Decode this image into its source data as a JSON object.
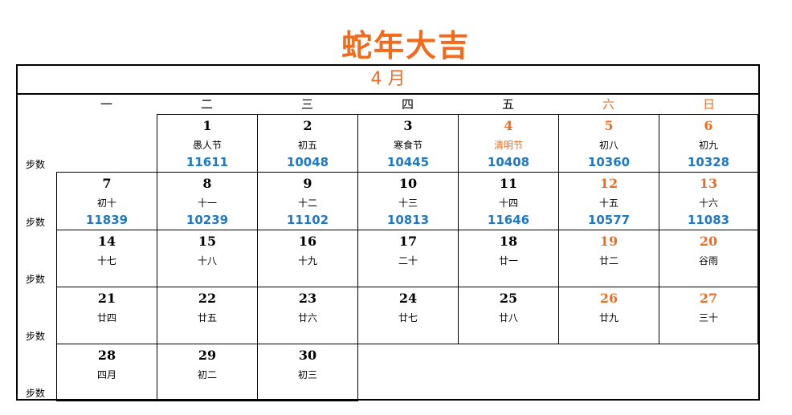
{
  "title": "蛇年大吉",
  "month": "4 月",
  "row_label": "步数",
  "weekdays": [
    {
      "label": "一",
      "weekend": false
    },
    {
      "label": "二",
      "weekend": false
    },
    {
      "label": "三",
      "weekend": false
    },
    {
      "label": "四",
      "weekend": false
    },
    {
      "label": "五",
      "weekend": false
    },
    {
      "label": "六",
      "weekend": true
    },
    {
      "label": "日",
      "weekend": true
    }
  ],
  "weeks": [
    [
      null,
      {
        "day": "1",
        "lunar": "愚人节",
        "steps": "11611",
        "weekend": false,
        "holiday": false
      },
      {
        "day": "2",
        "lunar": "初五",
        "steps": "10048",
        "weekend": false,
        "holiday": false
      },
      {
        "day": "3",
        "lunar": "寒食节",
        "steps": "10445",
        "weekend": false,
        "holiday": false
      },
      {
        "day": "4",
        "lunar": "清明节",
        "steps": "10408",
        "weekend": true,
        "holiday": true
      },
      {
        "day": "5",
        "lunar": "初八",
        "steps": "10360",
        "weekend": true,
        "holiday": false
      },
      {
        "day": "6",
        "lunar": "初九",
        "steps": "10328",
        "weekend": true,
        "holiday": false
      }
    ],
    [
      {
        "day": "7",
        "lunar": "初十",
        "steps": "11839",
        "weekend": false,
        "holiday": false
      },
      {
        "day": "8",
        "lunar": "十一",
        "steps": "10239",
        "weekend": false,
        "holiday": false
      },
      {
        "day": "9",
        "lunar": "十二",
        "steps": "11102",
        "weekend": false,
        "holiday": false
      },
      {
        "day": "10",
        "lunar": "十三",
        "steps": "10813",
        "weekend": false,
        "holiday": false
      },
      {
        "day": "11",
        "lunar": "十四",
        "steps": "11646",
        "weekend": false,
        "holiday": false
      },
      {
        "day": "12",
        "lunar": "十五",
        "steps": "10577",
        "weekend": true,
        "holiday": false
      },
      {
        "day": "13",
        "lunar": "十六",
        "steps": "11083",
        "weekend": true,
        "holiday": false
      }
    ],
    [
      {
        "day": "14",
        "lunar": "十七",
        "steps": "",
        "weekend": false,
        "holiday": false
      },
      {
        "day": "15",
        "lunar": "十八",
        "steps": "",
        "weekend": false,
        "holiday": false
      },
      {
        "day": "16",
        "lunar": "十九",
        "steps": "",
        "weekend": false,
        "holiday": false
      },
      {
        "day": "17",
        "lunar": "二十",
        "steps": "",
        "weekend": false,
        "holiday": false
      },
      {
        "day": "18",
        "lunar": "廿一",
        "steps": "",
        "weekend": false,
        "holiday": false
      },
      {
        "day": "19",
        "lunar": "廿二",
        "steps": "",
        "weekend": true,
        "holiday": false
      },
      {
        "day": "20",
        "lunar": "谷雨",
        "steps": "",
        "weekend": true,
        "holiday": false
      }
    ],
    [
      {
        "day": "21",
        "lunar": "廿四",
        "steps": "",
        "weekend": false,
        "holiday": false
      },
      {
        "day": "22",
        "lunar": "廿五",
        "steps": "",
        "weekend": false,
        "holiday": false
      },
      {
        "day": "23",
        "lunar": "廿六",
        "steps": "",
        "weekend": false,
        "holiday": false
      },
      {
        "day": "24",
        "lunar": "廿七",
        "steps": "",
        "weekend": false,
        "holiday": false
      },
      {
        "day": "25",
        "lunar": "廿八",
        "steps": "",
        "weekend": false,
        "holiday": false
      },
      {
        "day": "26",
        "lunar": "廿九",
        "steps": "",
        "weekend": true,
        "holiday": false
      },
      {
        "day": "27",
        "lunar": "三十",
        "steps": "",
        "weekend": true,
        "holiday": false
      }
    ],
    [
      {
        "day": "28",
        "lunar": "四月",
        "steps": "",
        "weekend": false,
        "holiday": false
      },
      {
        "day": "29",
        "lunar": "初二",
        "steps": "",
        "weekend": false,
        "holiday": false
      },
      {
        "day": "30",
        "lunar": "初三",
        "steps": "",
        "weekend": false,
        "holiday": false
      },
      null,
      null,
      null,
      null
    ]
  ],
  "colors": {
    "accent": "#f26b1d",
    "steps": "#1d79c6",
    "text": "#000000"
  }
}
